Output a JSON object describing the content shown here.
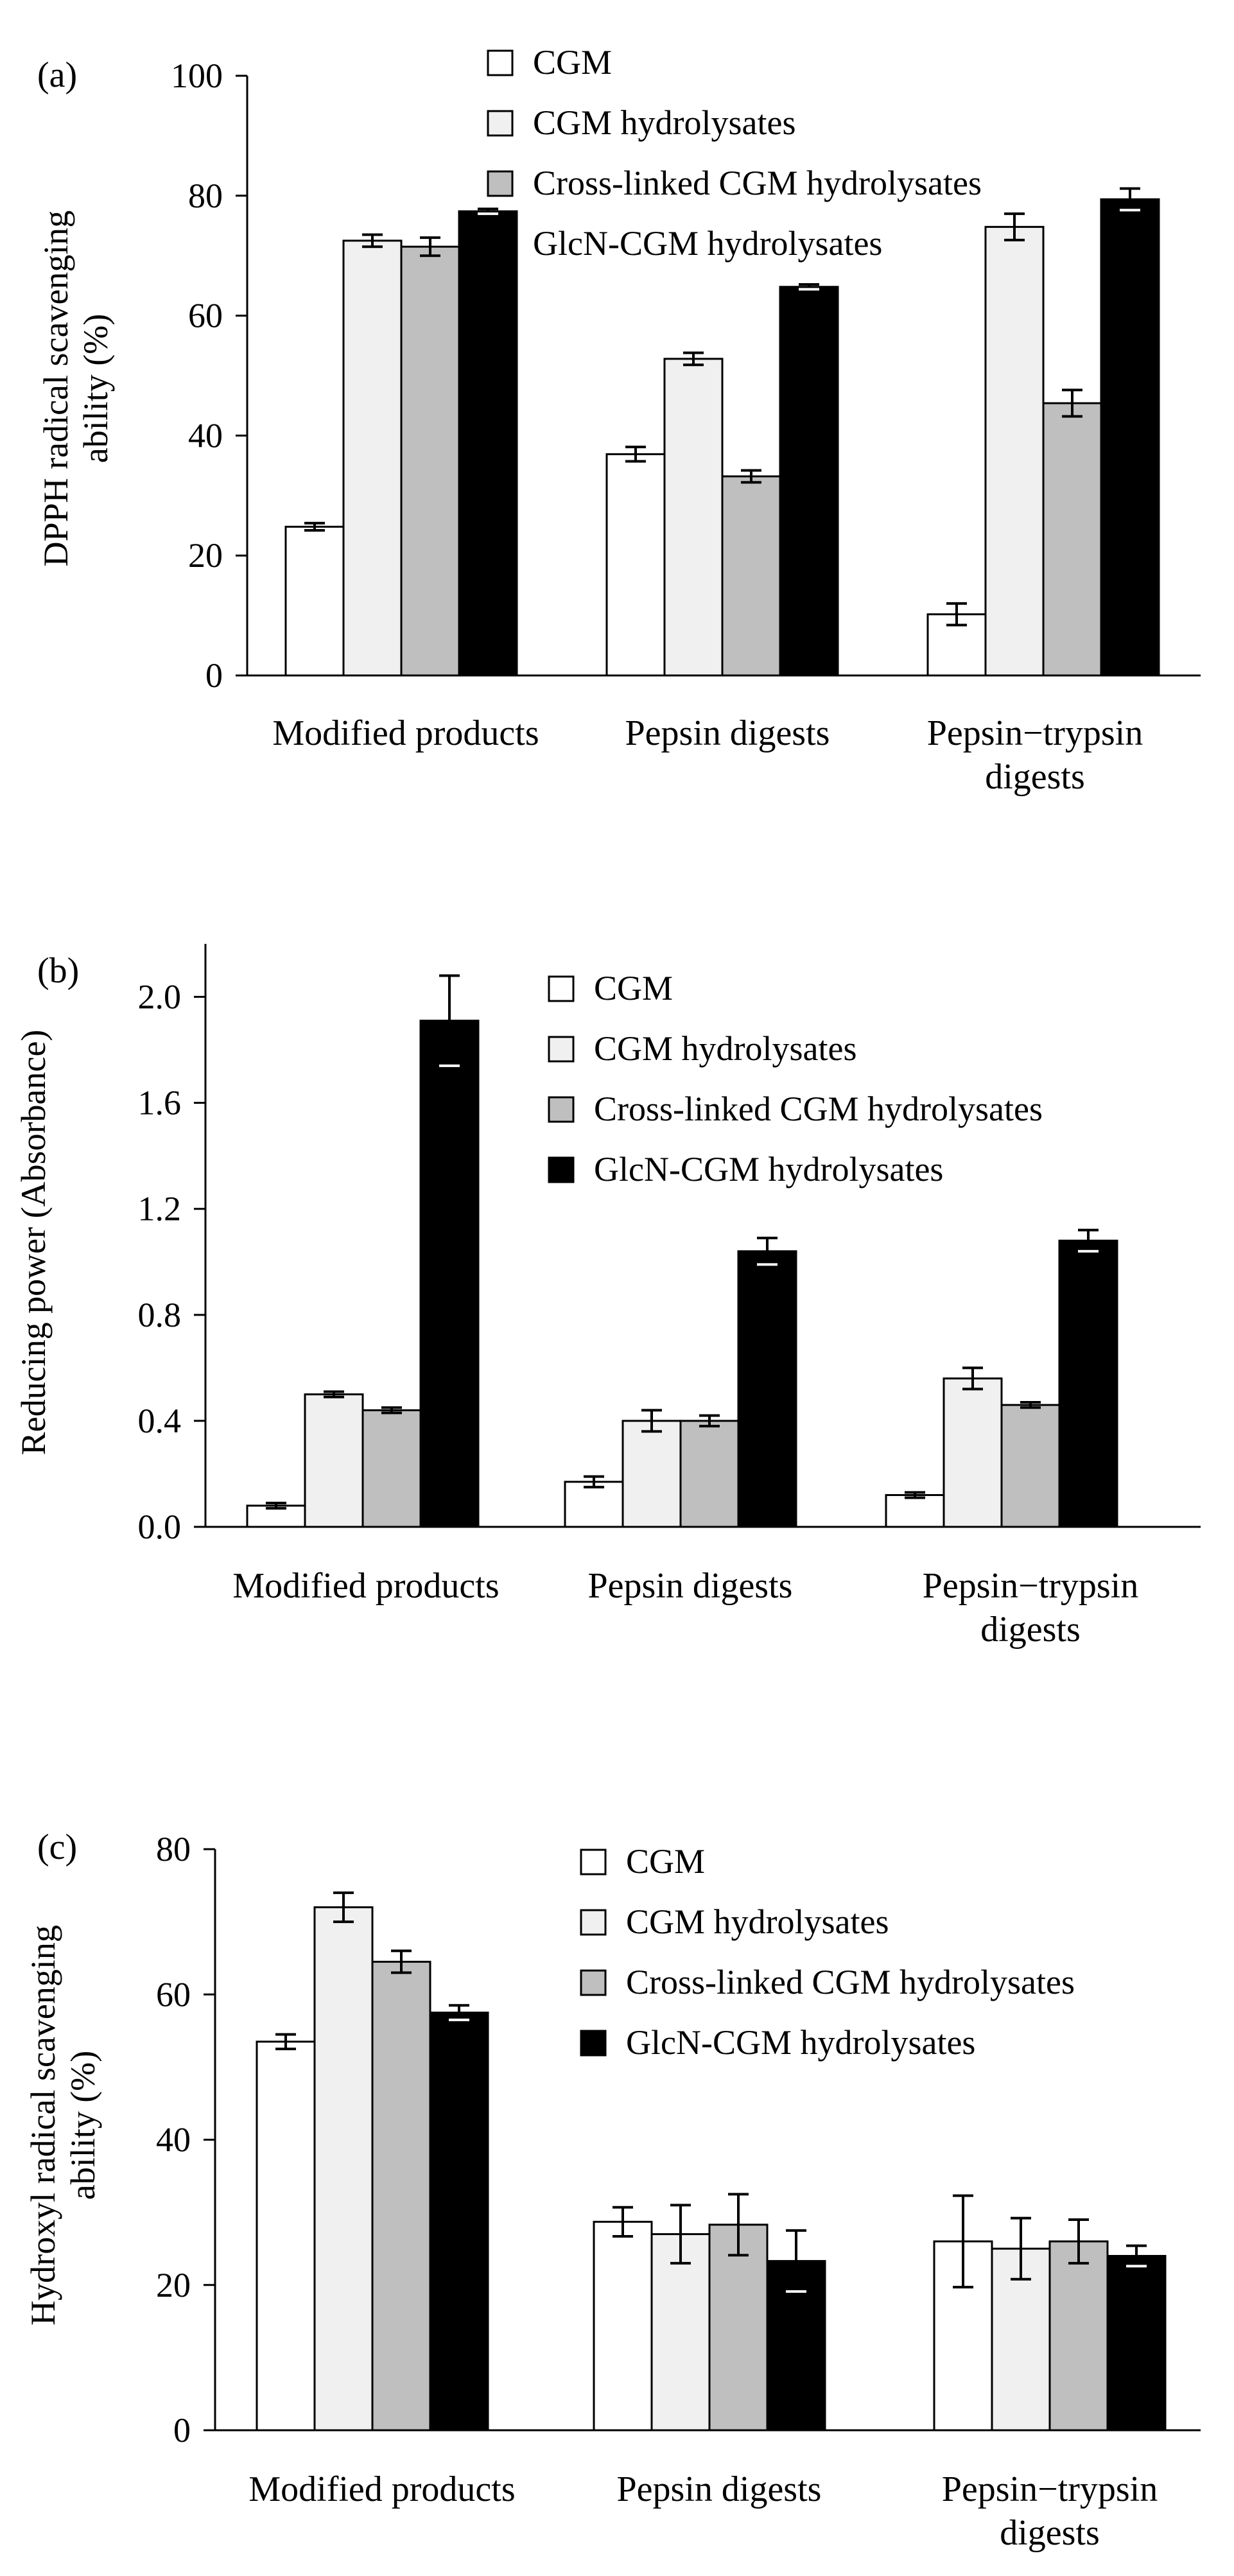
{
  "series_colors": [
    "#ffffff",
    "#f0f0f0",
    "#bfbfbf",
    "#000000"
  ],
  "error_colors": [
    "#000000",
    "#000000",
    "#000000",
    "#ffffff"
  ],
  "chart_data": [
    {
      "type": "bar",
      "panel_label": "(a)",
      "ylabel_lines": [
        "DPPH radical scavenging",
        "ability (%)"
      ],
      "xlabel": "",
      "categories": [
        [
          "Modified products"
        ],
        [
          "Pepsin digests"
        ],
        [
          "Pepsin−trypsin",
          "digests"
        ]
      ],
      "ylim": [
        0,
        100
      ],
      "yticks": [
        0,
        20,
        40,
        60,
        80,
        100
      ],
      "ytick_labels": [
        "0",
        "20",
        "40",
        "60",
        "80",
        "100"
      ],
      "legend": [
        "CGM",
        "CGM hydrolysates",
        "Cross-linked CGM hydrolysates",
        "GlcN-CGM hydrolysates"
      ],
      "legend_position": "top-right",
      "series": [
        {
          "name": "CGM",
          "values": [
            24.8,
            36.9,
            10.2
          ],
          "errors": [
            0.6,
            1.2,
            1.8
          ]
        },
        {
          "name": "CGM hydrolysates",
          "values": [
            72.5,
            52.8,
            74.8
          ],
          "errors": [
            1.0,
            1.0,
            2.2
          ]
        },
        {
          "name": "Cross-linked CGM hydrolysates",
          "values": [
            71.5,
            33.2,
            45.4
          ],
          "errors": [
            1.5,
            1.0,
            2.2
          ]
        },
        {
          "name": "GlcN-CGM hydrolysates",
          "values": [
            77.4,
            64.8,
            79.4
          ],
          "errors": [
            0.4,
            0.4,
            1.8
          ]
        }
      ]
    },
    {
      "type": "bar",
      "panel_label": "(b)",
      "ylabel_lines": [
        "Reducing power (Absorbance)"
      ],
      "xlabel": "",
      "categories": [
        [
          "Modified products"
        ],
        [
          "Pepsin digests"
        ],
        [
          "Pepsin−trypsin",
          "digests"
        ]
      ],
      "ylim": [
        0,
        2.2
      ],
      "yticks": [
        0,
        0.4,
        0.8,
        1.2,
        1.6,
        2.0
      ],
      "ytick_labels": [
        "0.0",
        "0.4",
        "0.8",
        "1.2",
        "1.6",
        "2.0"
      ],
      "legend": [
        "CGM",
        "CGM hydrolysates",
        "Cross-linked CGM hydrolysates",
        "GlcN-CGM hydrolysates"
      ],
      "legend_position": "top-right",
      "series": [
        {
          "name": "CGM",
          "values": [
            0.08,
            0.17,
            0.12
          ],
          "errors": [
            0.01,
            0.02,
            0.01
          ]
        },
        {
          "name": "CGM hydrolysates",
          "values": [
            0.5,
            0.4,
            0.56
          ],
          "errors": [
            0.01,
            0.04,
            0.04
          ]
        },
        {
          "name": "Cross-linked CGM hydrolysates",
          "values": [
            0.44,
            0.4,
            0.46
          ],
          "errors": [
            0.01,
            0.02,
            0.01
          ]
        },
        {
          "name": "GlcN-CGM hydrolysates",
          "values": [
            1.91,
            1.04,
            1.08
          ],
          "errors": [
            0.17,
            0.05,
            0.04
          ]
        }
      ]
    },
    {
      "type": "bar",
      "panel_label": "(c)",
      "ylabel_lines": [
        "Hydroxyl radical scavenging",
        "ability (%)"
      ],
      "xlabel": "",
      "categories": [
        [
          "Modified products"
        ],
        [
          "Pepsin digests"
        ],
        [
          "Pepsin−trypsin",
          "digests"
        ]
      ],
      "ylim": [
        0,
        80
      ],
      "yticks": [
        0,
        20,
        40,
        60,
        80
      ],
      "ytick_labels": [
        "0",
        "20",
        "40",
        "60",
        "80"
      ],
      "legend": [
        "CGM",
        "CGM hydrolysates",
        "Cross-linked CGM hydrolysates",
        "GlcN-CGM hydrolysates"
      ],
      "legend_position": "top-right",
      "series": [
        {
          "name": "CGM",
          "values": [
            53.5,
            28.7,
            26.0
          ],
          "errors": [
            1.0,
            2.0,
            6.3
          ]
        },
        {
          "name": "CGM hydrolysates",
          "values": [
            72.0,
            27.0,
            25.0
          ],
          "errors": [
            2.0,
            4.0,
            4.2
          ]
        },
        {
          "name": "Cross-linked CGM hydrolysates",
          "values": [
            64.5,
            28.3,
            26.0
          ],
          "errors": [
            1.5,
            4.2,
            3.0
          ]
        },
        {
          "name": "GlcN-CGM hydrolysates",
          "values": [
            57.5,
            23.3,
            24.0
          ],
          "errors": [
            1.0,
            4.2,
            1.4
          ]
        }
      ]
    }
  ]
}
